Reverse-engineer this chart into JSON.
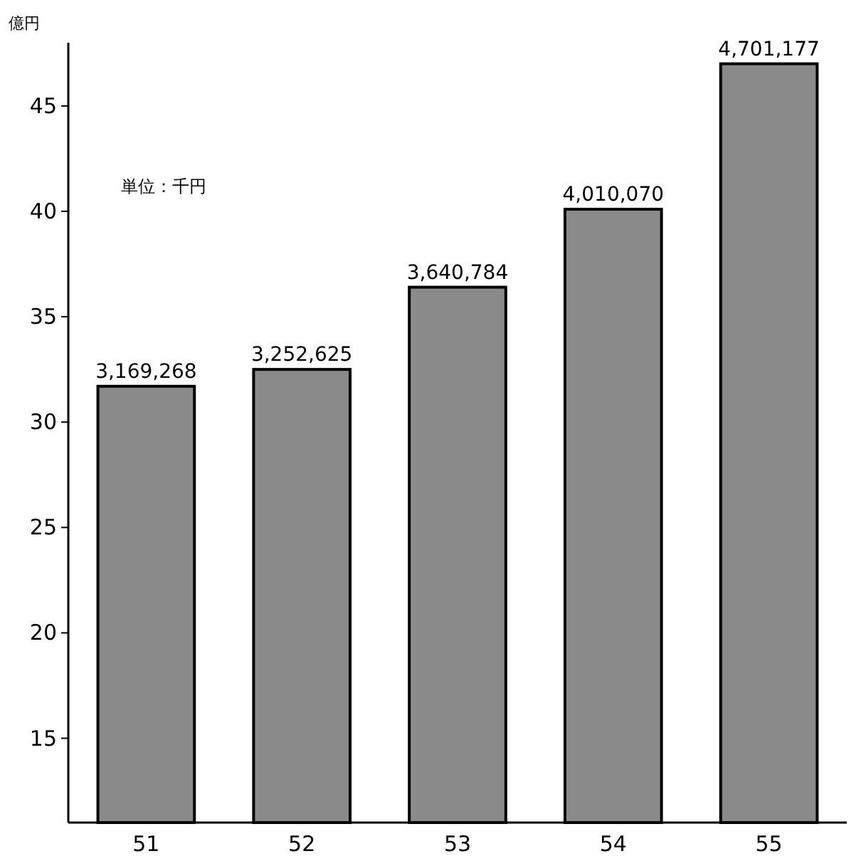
{
  "chart_data": {
    "type": "bar",
    "ylabel": "億円",
    "annotations": [
      "単位：千円",
      {
        "text": "3,169,268",
        "x": "51",
        "y": 31.7
      },
      {
        "text": "3,252,625",
        "x": "52",
        "y": 32.5
      },
      {
        "text": "3,640,784",
        "x": "53",
        "y": 36.4
      },
      {
        "text": "4,010,070",
        "x": "54",
        "y": 40.1
      },
      {
        "text": "4,701,177",
        "x": "55",
        "y": 47.0
      }
    ],
    "categories": [
      "51",
      "52",
      "53",
      "54",
      "55"
    ],
    "values": [
      31.7,
      32.5,
      36.4,
      40.1,
      47.0
    ],
    "color": "#8a8a8a",
    "ylim": [
      11,
      48
    ],
    "yticks": [
      15,
      20,
      25,
      30,
      35,
      40,
      45
    ],
    "grid": false
  }
}
